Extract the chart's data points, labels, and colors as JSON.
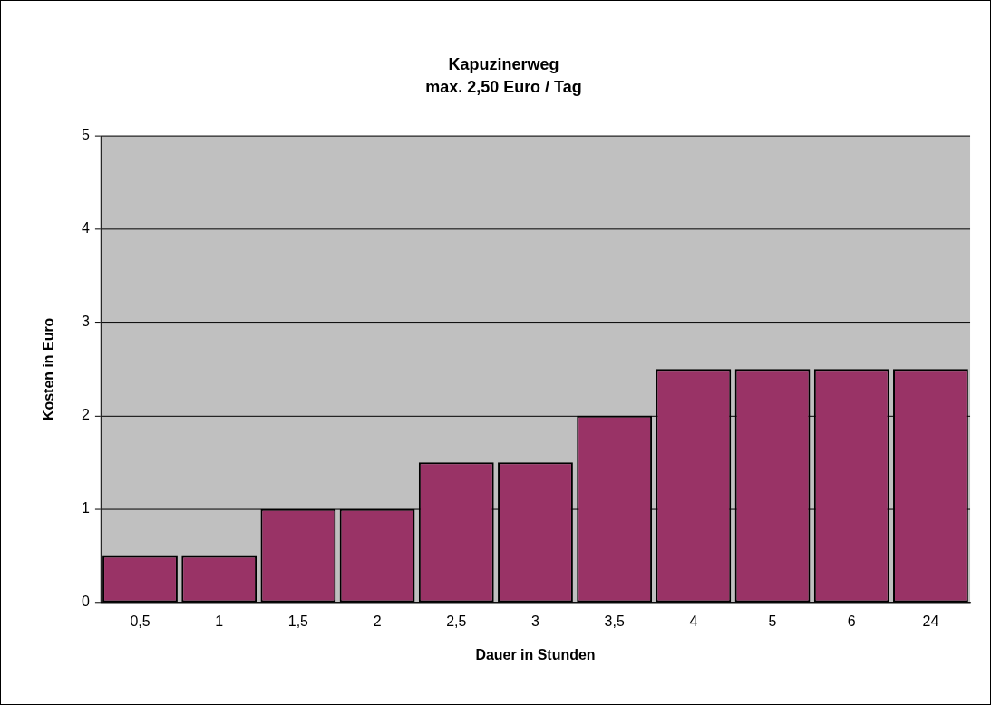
{
  "chart_data": {
    "type": "bar",
    "title": "Kapuzinerweg",
    "subtitle": "max. 2,50 Euro / Tag",
    "xlabel": "Dauer in Stunden",
    "ylabel": "Kosten in Euro",
    "categories": [
      "0,5",
      "1",
      "1,5",
      "2",
      "2,5",
      "3",
      "3,5",
      "4",
      "5",
      "6",
      "24"
    ],
    "values": [
      0.5,
      0.5,
      1,
      1,
      1.5,
      1.5,
      2,
      2.5,
      2.5,
      2.5,
      2.5
    ],
    "color": "#993366",
    "ylim": [
      0,
      5
    ],
    "yticks": [
      0,
      1,
      2,
      3,
      4,
      5
    ],
    "grid": "y",
    "legend": false
  }
}
